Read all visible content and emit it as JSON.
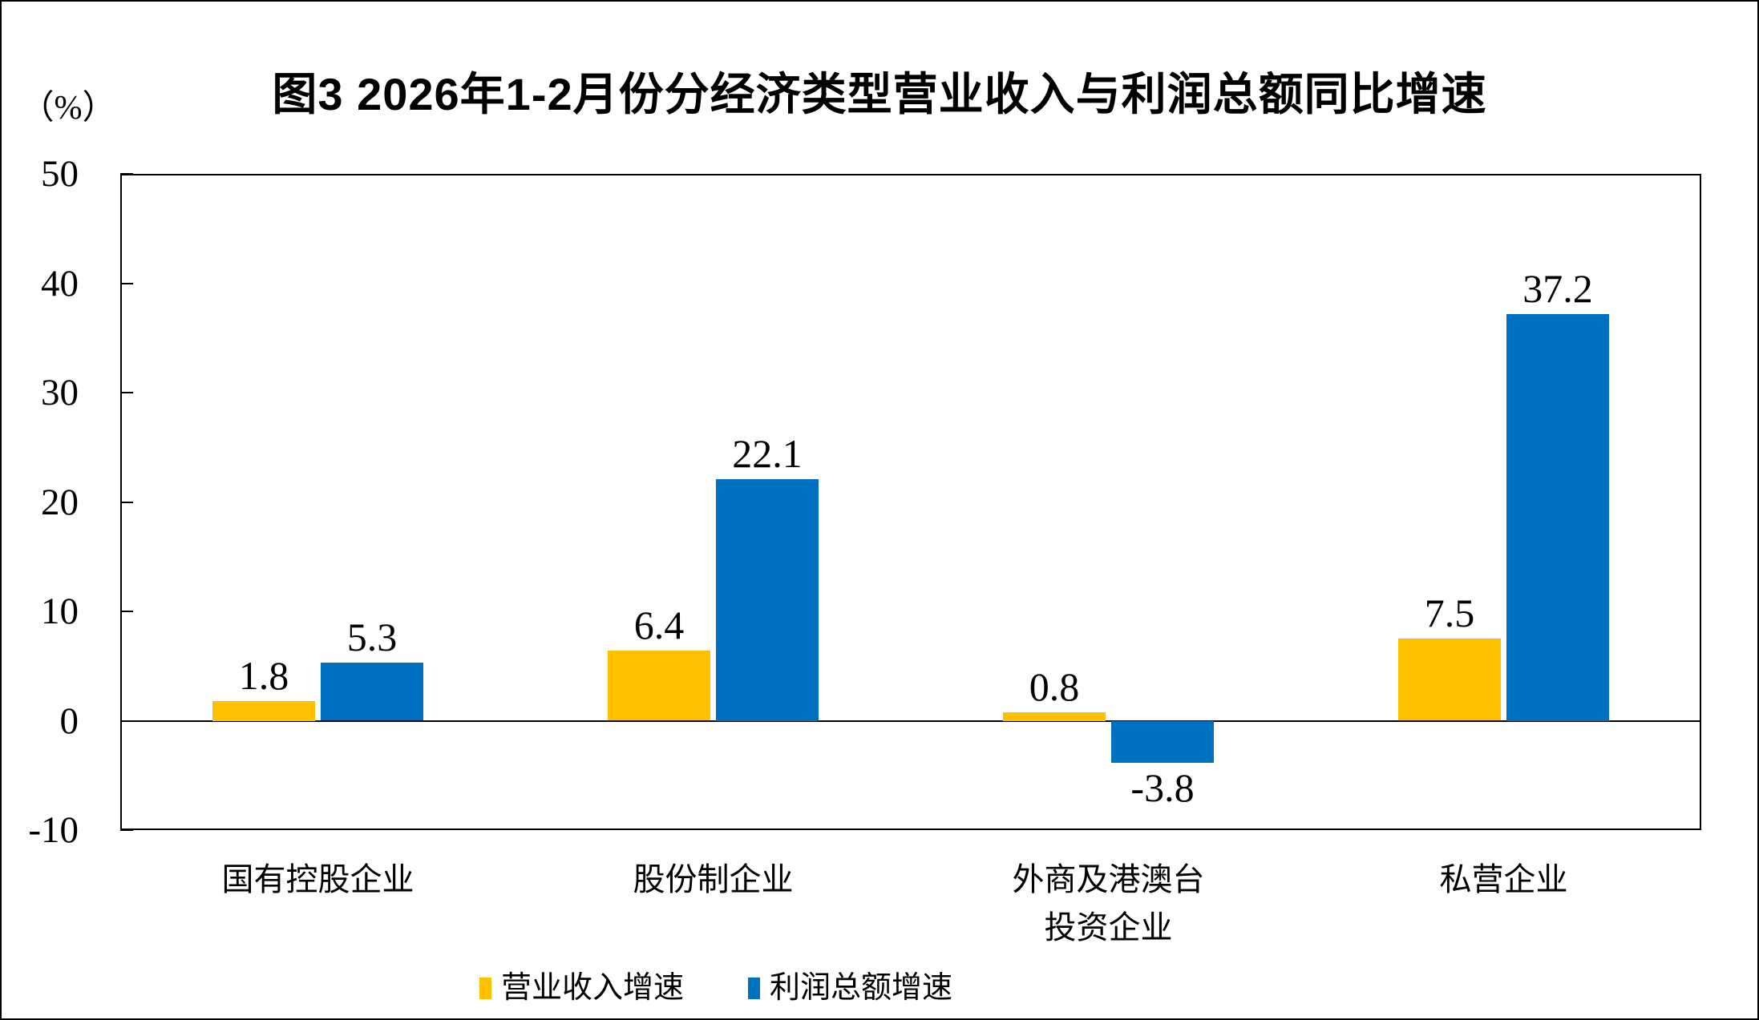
{
  "title": "图3  2026年1-2月份分经济类型营业收入与利润总额同比增速",
  "unit_label": "（%）",
  "chart_data": {
    "type": "bar",
    "title": "图3  2026年1-2月份分经济类型营业收入与利润总额同比增速",
    "ylabel": "（%）",
    "categories": [
      "国有控股企业",
      "股份制企业",
      "外商及港澳台\n投资企业",
      "私营企业"
    ],
    "series": [
      {
        "name": "营业收入增速",
        "color": "#FFC000",
        "values": [
          1.8,
          6.4,
          0.8,
          7.5
        ]
      },
      {
        "name": "利润总额增速",
        "color": "#0070C0",
        "values": [
          5.3,
          22.1,
          -3.8,
          37.2
        ]
      }
    ],
    "ylim": [
      -10,
      50
    ],
    "yticks": [
      50,
      40,
      30,
      20,
      10,
      0,
      -10
    ],
    "grid": false,
    "zero_baseline": true,
    "legend_position": "bottom",
    "bar_value_labels": true
  }
}
